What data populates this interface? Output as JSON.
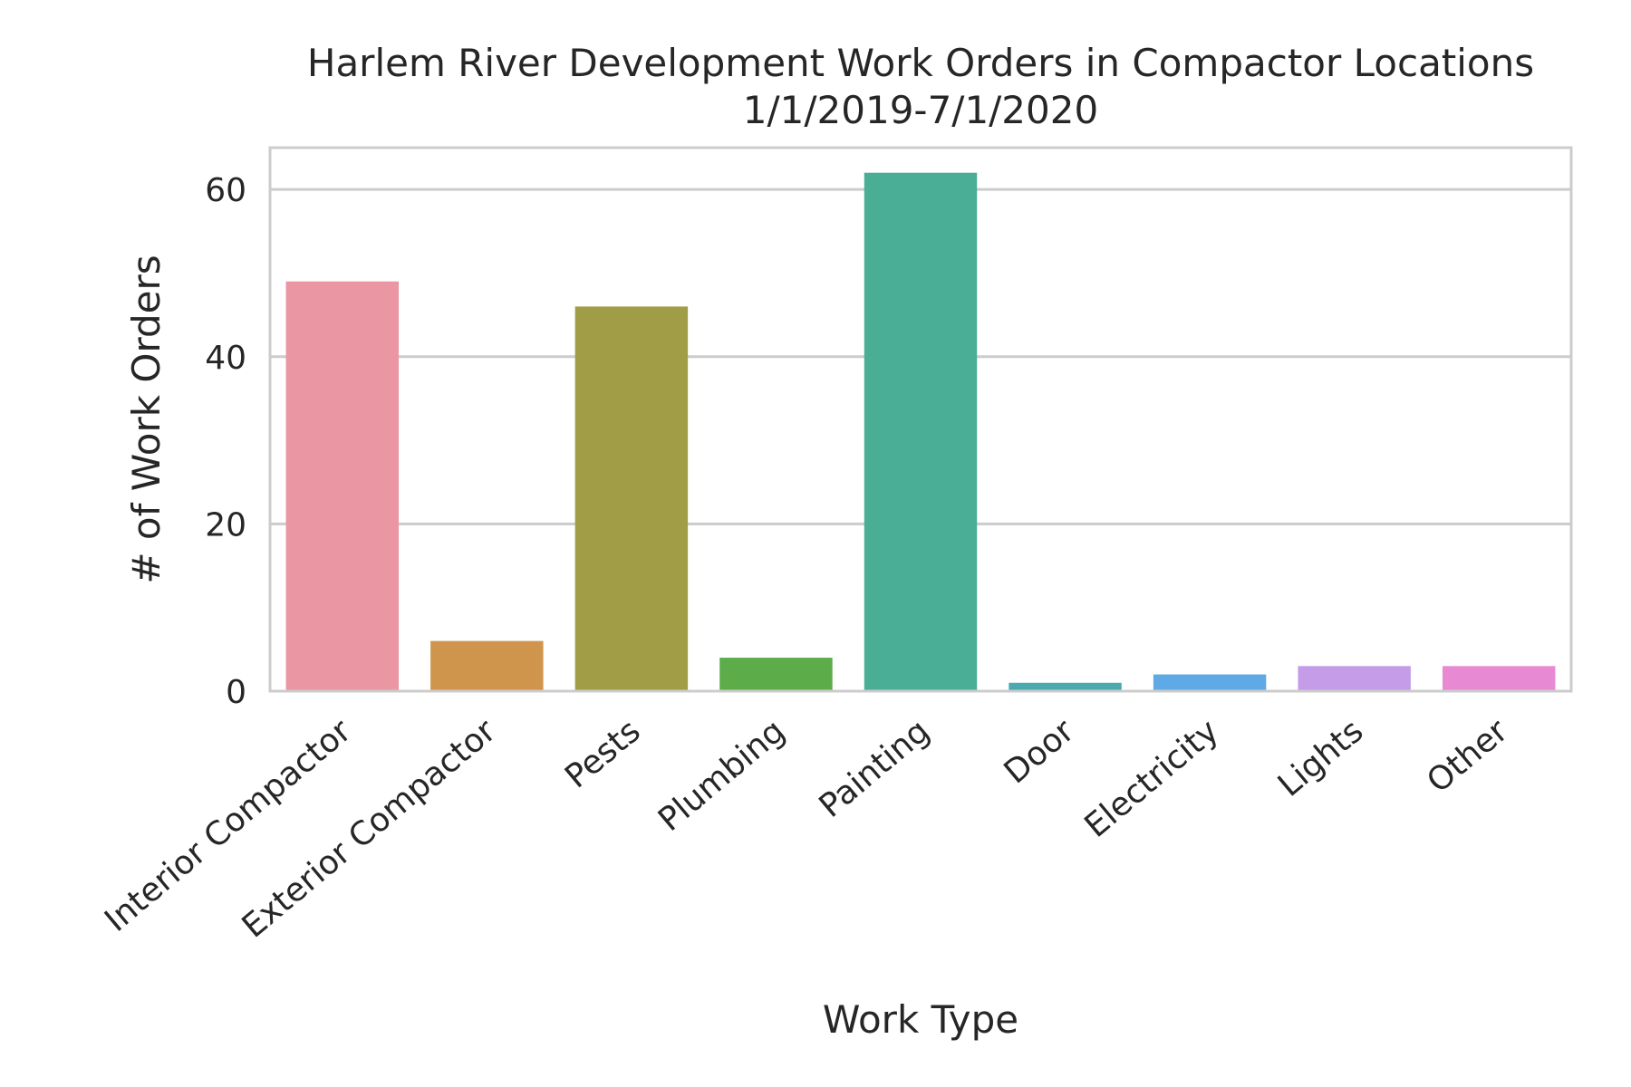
{
  "chart_data": {
    "type": "bar",
    "title_line1": "Harlem River Development Work Orders in Compactor Locations",
    "title_line2": "1/1/2019-7/1/2020",
    "xlabel": "Work Type",
    "ylabel": "# of Work Orders",
    "ylim": [
      0,
      65
    ],
    "yticks": [
      0,
      20,
      40,
      60
    ],
    "grid": "horizontal",
    "categories": [
      "Interior Compactor",
      "Exterior Compactor",
      "Pests",
      "Plumbing",
      "Painting",
      "Door",
      "Electricity",
      "Lights",
      "Other"
    ],
    "values": [
      49,
      6,
      46,
      4,
      62,
      1,
      2,
      3,
      3
    ],
    "colors": [
      "#ea96a3",
      "#d0954c",
      "#a19d47",
      "#5cad4a",
      "#4aae96",
      "#4ba9b0",
      "#5ea9e6",
      "#c49ce8",
      "#e78ad3"
    ],
    "grid_color": "#cccccc",
    "spine_color": "#cccccc"
  }
}
